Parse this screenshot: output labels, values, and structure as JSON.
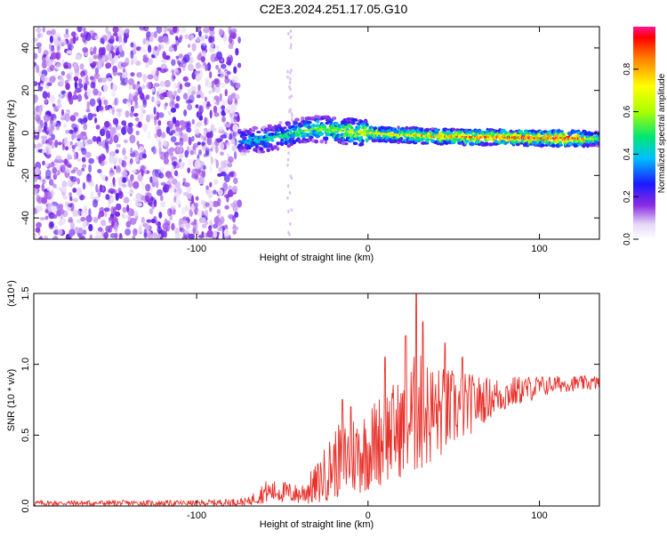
{
  "title": "C2E3.2024.251.17.05.G10",
  "chart_data": [
    {
      "type": "heatmap",
      "xlabel": "Height of straight line (km)",
      "ylabel": "Frequency (Hz)",
      "xlim": [
        -195,
        135
      ],
      "ylim": [
        -50,
        50
      ],
      "xticks": [
        {
          "value": -100,
          "label": "-100"
        },
        {
          "value": 0,
          "label": "0"
        },
        {
          "value": 100,
          "label": "100"
        }
      ],
      "yticks": [
        {
          "value": -40,
          "label": "-40"
        },
        {
          "value": -20,
          "label": "-20"
        },
        {
          "value": 0,
          "label": "0"
        },
        {
          "value": 20,
          "label": "20"
        },
        {
          "value": 40,
          "label": "40"
        }
      ],
      "colorbar": {
        "label": "Normalized spectral amplitude",
        "range": [
          0,
          1
        ],
        "ticks": [
          {
            "value": 0.0,
            "label": "0.0"
          },
          {
            "value": 0.2,
            "label": "0.2"
          },
          {
            "value": 0.4,
            "label": "0.4"
          },
          {
            "value": 0.6,
            "label": "0.6"
          },
          {
            "value": 0.8,
            "label": "0.8"
          }
        ]
      },
      "noise_region": {
        "x": [
          -195,
          -75
        ],
        "y": [
          -50,
          50
        ],
        "amplitude": 0.15
      },
      "signal_ridge": [
        {
          "x": -75,
          "y": -4,
          "amplitude": 0.35
        },
        {
          "x": -60,
          "y": -3,
          "amplitude": 0.45
        },
        {
          "x": -45,
          "y": 0,
          "amplitude": 0.5
        },
        {
          "x": -30,
          "y": 2,
          "amplitude": 0.55
        },
        {
          "x": -15,
          "y": 1,
          "amplitude": 0.6
        },
        {
          "x": 0,
          "y": 0,
          "amplitude": 0.7
        },
        {
          "x": 20,
          "y": -1,
          "amplitude": 0.72
        },
        {
          "x": 40,
          "y": -1.5,
          "amplitude": 0.78
        },
        {
          "x": 60,
          "y": -2,
          "amplitude": 0.82
        },
        {
          "x": 80,
          "y": -2,
          "amplitude": 0.86
        },
        {
          "x": 100,
          "y": -2.5,
          "amplitude": 0.9
        },
        {
          "x": 120,
          "y": -2.5,
          "amplitude": 0.95
        },
        {
          "x": 135,
          "y": -3,
          "amplitude": 0.5
        }
      ]
    },
    {
      "type": "line",
      "xlabel": "Height of straight line (km)",
      "ylabel": "SNR (10 * v/v)",
      "scale_label": "(x10⁴)",
      "xlim": [
        -195,
        135
      ],
      "ylim": [
        0,
        1.5
      ],
      "xticks": [
        {
          "value": -100,
          "label": "-100"
        },
        {
          "value": 0,
          "label": "0"
        },
        {
          "value": 100,
          "label": "100"
        }
      ],
      "yticks": [
        {
          "value": 0.0,
          "label": "0.0"
        },
        {
          "value": 0.5,
          "label": "0.5"
        },
        {
          "value": 1.0,
          "label": "1.0"
        },
        {
          "value": 1.5,
          "label": "1.5"
        }
      ],
      "color": "#e8312a",
      "series_envelope": [
        {
          "x": -195,
          "mean": 0.02,
          "spread": 0.02
        },
        {
          "x": -100,
          "mean": 0.02,
          "spread": 0.02
        },
        {
          "x": -70,
          "mean": 0.03,
          "spread": 0.03
        },
        {
          "x": -60,
          "mean": 0.1,
          "spread": 0.08
        },
        {
          "x": -50,
          "mean": 0.1,
          "spread": 0.08
        },
        {
          "x": -40,
          "mean": 0.08,
          "spread": 0.07
        },
        {
          "x": -30,
          "mean": 0.15,
          "spread": 0.15
        },
        {
          "x": -20,
          "mean": 0.3,
          "spread": 0.25
        },
        {
          "x": -10,
          "mean": 0.35,
          "spread": 0.3
        },
        {
          "x": 0,
          "mean": 0.4,
          "spread": 0.3
        },
        {
          "x": 10,
          "mean": 0.5,
          "spread": 0.35
        },
        {
          "x": 20,
          "mean": 0.55,
          "spread": 0.35
        },
        {
          "x": 28,
          "mean": 0.65,
          "spread": 0.45
        },
        {
          "x": 40,
          "mean": 0.65,
          "spread": 0.35
        },
        {
          "x": 55,
          "mean": 0.7,
          "spread": 0.25
        },
        {
          "x": 70,
          "mean": 0.76,
          "spread": 0.15
        },
        {
          "x": 90,
          "mean": 0.82,
          "spread": 0.1
        },
        {
          "x": 110,
          "mean": 0.86,
          "spread": 0.06
        },
        {
          "x": 135,
          "mean": 0.87,
          "spread": 0.05
        }
      ],
      "peaks": [
        {
          "x": -15,
          "y": 0.75
        },
        {
          "x": -10,
          "y": 0.7
        },
        {
          "x": 10,
          "y": 1.05
        },
        {
          "x": 22,
          "y": 1.2
        },
        {
          "x": 28,
          "y": 1.5
        },
        {
          "x": 32,
          "y": 1.3
        },
        {
          "x": 45,
          "y": 1.15
        },
        {
          "x": 55,
          "y": 1.05
        }
      ]
    }
  ]
}
